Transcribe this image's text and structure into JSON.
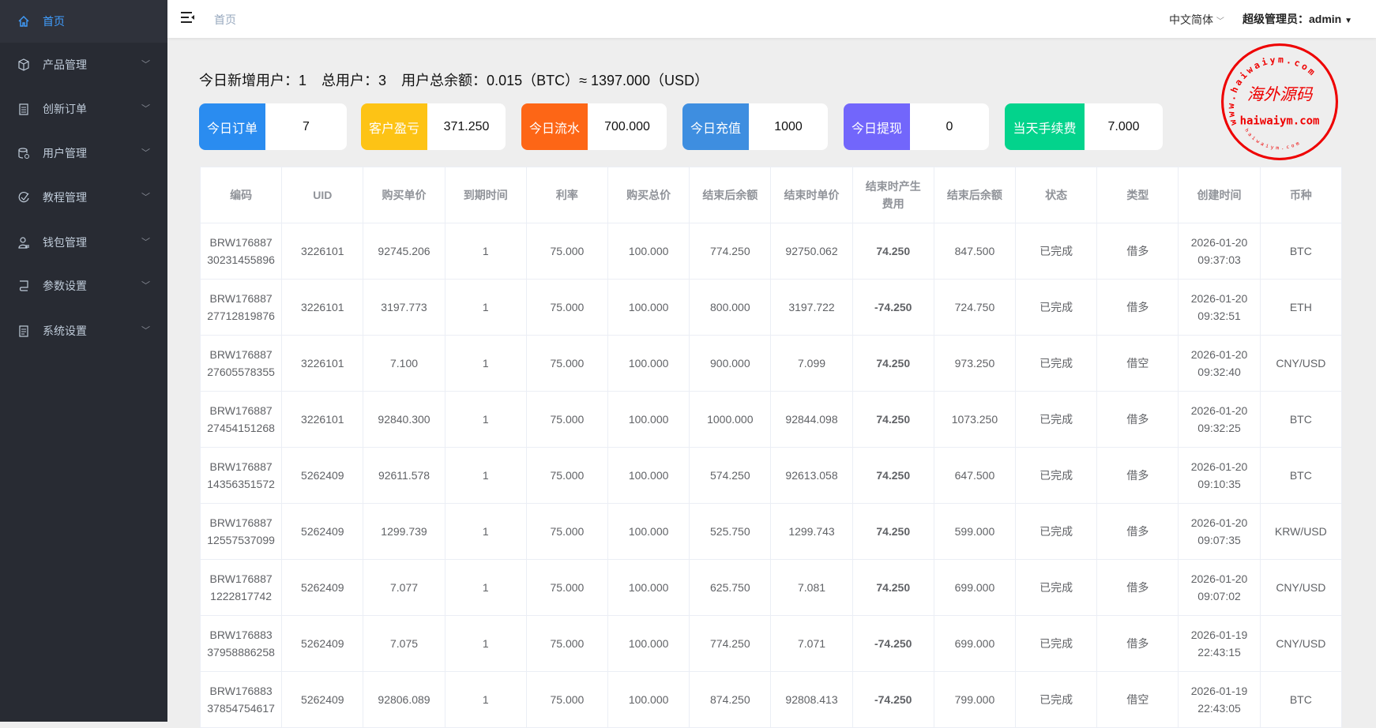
{
  "sidebar": {
    "items": [
      {
        "label": "首页",
        "icon": "home-icon",
        "active": true
      },
      {
        "label": "产品管理",
        "icon": "box-icon"
      },
      {
        "label": "创新订单",
        "icon": "clipboard-icon"
      },
      {
        "label": "用户管理",
        "icon": "database-user-icon"
      },
      {
        "label": "教程管理",
        "icon": "check-circle-icon"
      },
      {
        "label": "钱包管理",
        "icon": "user-wallet-icon"
      },
      {
        "label": "参数设置",
        "icon": "monitor-icon"
      },
      {
        "label": "系统设置",
        "icon": "document-icon"
      }
    ]
  },
  "header": {
    "breadcrumb": "首页",
    "language": "中文简体",
    "admin_label": "超级管理员：admin"
  },
  "summary": {
    "new_users": "今日新增用户：1",
    "total_users": "总用户：3",
    "balance": "用户总余额：0.015（BTC）≈ 1397.000（USD）"
  },
  "cards": [
    {
      "label": "今日订单",
      "value": "7",
      "color": "#2a8cf0"
    },
    {
      "label": "客户盈亏",
      "value": "371.250",
      "color": "#fdc315"
    },
    {
      "label": "今日流水",
      "value": "700.000",
      "color": "#fd6616"
    },
    {
      "label": "今日充值",
      "value": "1000",
      "color": "#3e8ee0"
    },
    {
      "label": "今日提现",
      "value": "0",
      "color": "#7266fb"
    },
    {
      "label": "当天手续费",
      "value": "7.000",
      "color": "#03d38c"
    }
  ],
  "table": {
    "columns": [
      "编码",
      "UID",
      "购买单价",
      "到期时间",
      "利率",
      "购买总价",
      "结束后余额",
      "结束时单价",
      "结束时产生费用",
      "结束后余额",
      "状态",
      "类型",
      "创建时间",
      "币种"
    ],
    "rows": [
      [
        "BRW17688730231455896",
        "3226101",
        "92745.206",
        "1",
        "75.000",
        "100.000",
        "774.250",
        "92750.062",
        "74.250",
        "847.500",
        "已完成",
        "借多",
        "2026-01-20 09:37:03",
        "BTC"
      ],
      [
        "BRW17688727712819876",
        "3226101",
        "3197.773",
        "1",
        "75.000",
        "100.000",
        "800.000",
        "3197.722",
        "-74.250",
        "724.750",
        "已完成",
        "借多",
        "2026-01-20 09:32:51",
        "ETH"
      ],
      [
        "BRW17688727605578355",
        "3226101",
        "7.100",
        "1",
        "75.000",
        "100.000",
        "900.000",
        "7.099",
        "74.250",
        "973.250",
        "已完成",
        "借空",
        "2026-01-20 09:32:40",
        "CNY/USD"
      ],
      [
        "BRW17688727454151268",
        "3226101",
        "92840.300",
        "1",
        "75.000",
        "100.000",
        "1000.000",
        "92844.098",
        "74.250",
        "1073.250",
        "已完成",
        "借多",
        "2026-01-20 09:32:25",
        "BTC"
      ],
      [
        "BRW17688714356351572",
        "5262409",
        "92611.578",
        "1",
        "75.000",
        "100.000",
        "574.250",
        "92613.058",
        "74.250",
        "647.500",
        "已完成",
        "借多",
        "2026-01-20 09:10:35",
        "BTC"
      ],
      [
        "BRW17688712557537099",
        "5262409",
        "1299.739",
        "1",
        "75.000",
        "100.000",
        "525.750",
        "1299.743",
        "74.250",
        "599.000",
        "已完成",
        "借多",
        "2026-01-20 09:07:35",
        "KRW/USD"
      ],
      [
        "BRW1768871222817742",
        "5262409",
        "7.077",
        "1",
        "75.000",
        "100.000",
        "625.750",
        "7.081",
        "74.250",
        "699.000",
        "已完成",
        "借多",
        "2026-01-20 09:07:02",
        "CNY/USD"
      ],
      [
        "BRW17688337958886258",
        "5262409",
        "7.075",
        "1",
        "75.000",
        "100.000",
        "774.250",
        "7.071",
        "-74.250",
        "699.000",
        "已完成",
        "借多",
        "2026-01-19 22:43:15",
        "CNY/USD"
      ],
      [
        "BRW17688337854754617",
        "5262409",
        "92806.089",
        "1",
        "75.000",
        "100.000",
        "874.250",
        "92808.413",
        "-74.250",
        "799.000",
        "已完成",
        "借空",
        "2026-01-19 22:43:05",
        "BTC"
      ]
    ]
  },
  "watermark": {
    "arc_text": "www.haiwaiym.com",
    "center_text": "海外源码",
    "domain_text": "haiwaiym.com",
    "bottom_arc_text": "haiwaiym.com",
    "color": "#ee0000"
  }
}
